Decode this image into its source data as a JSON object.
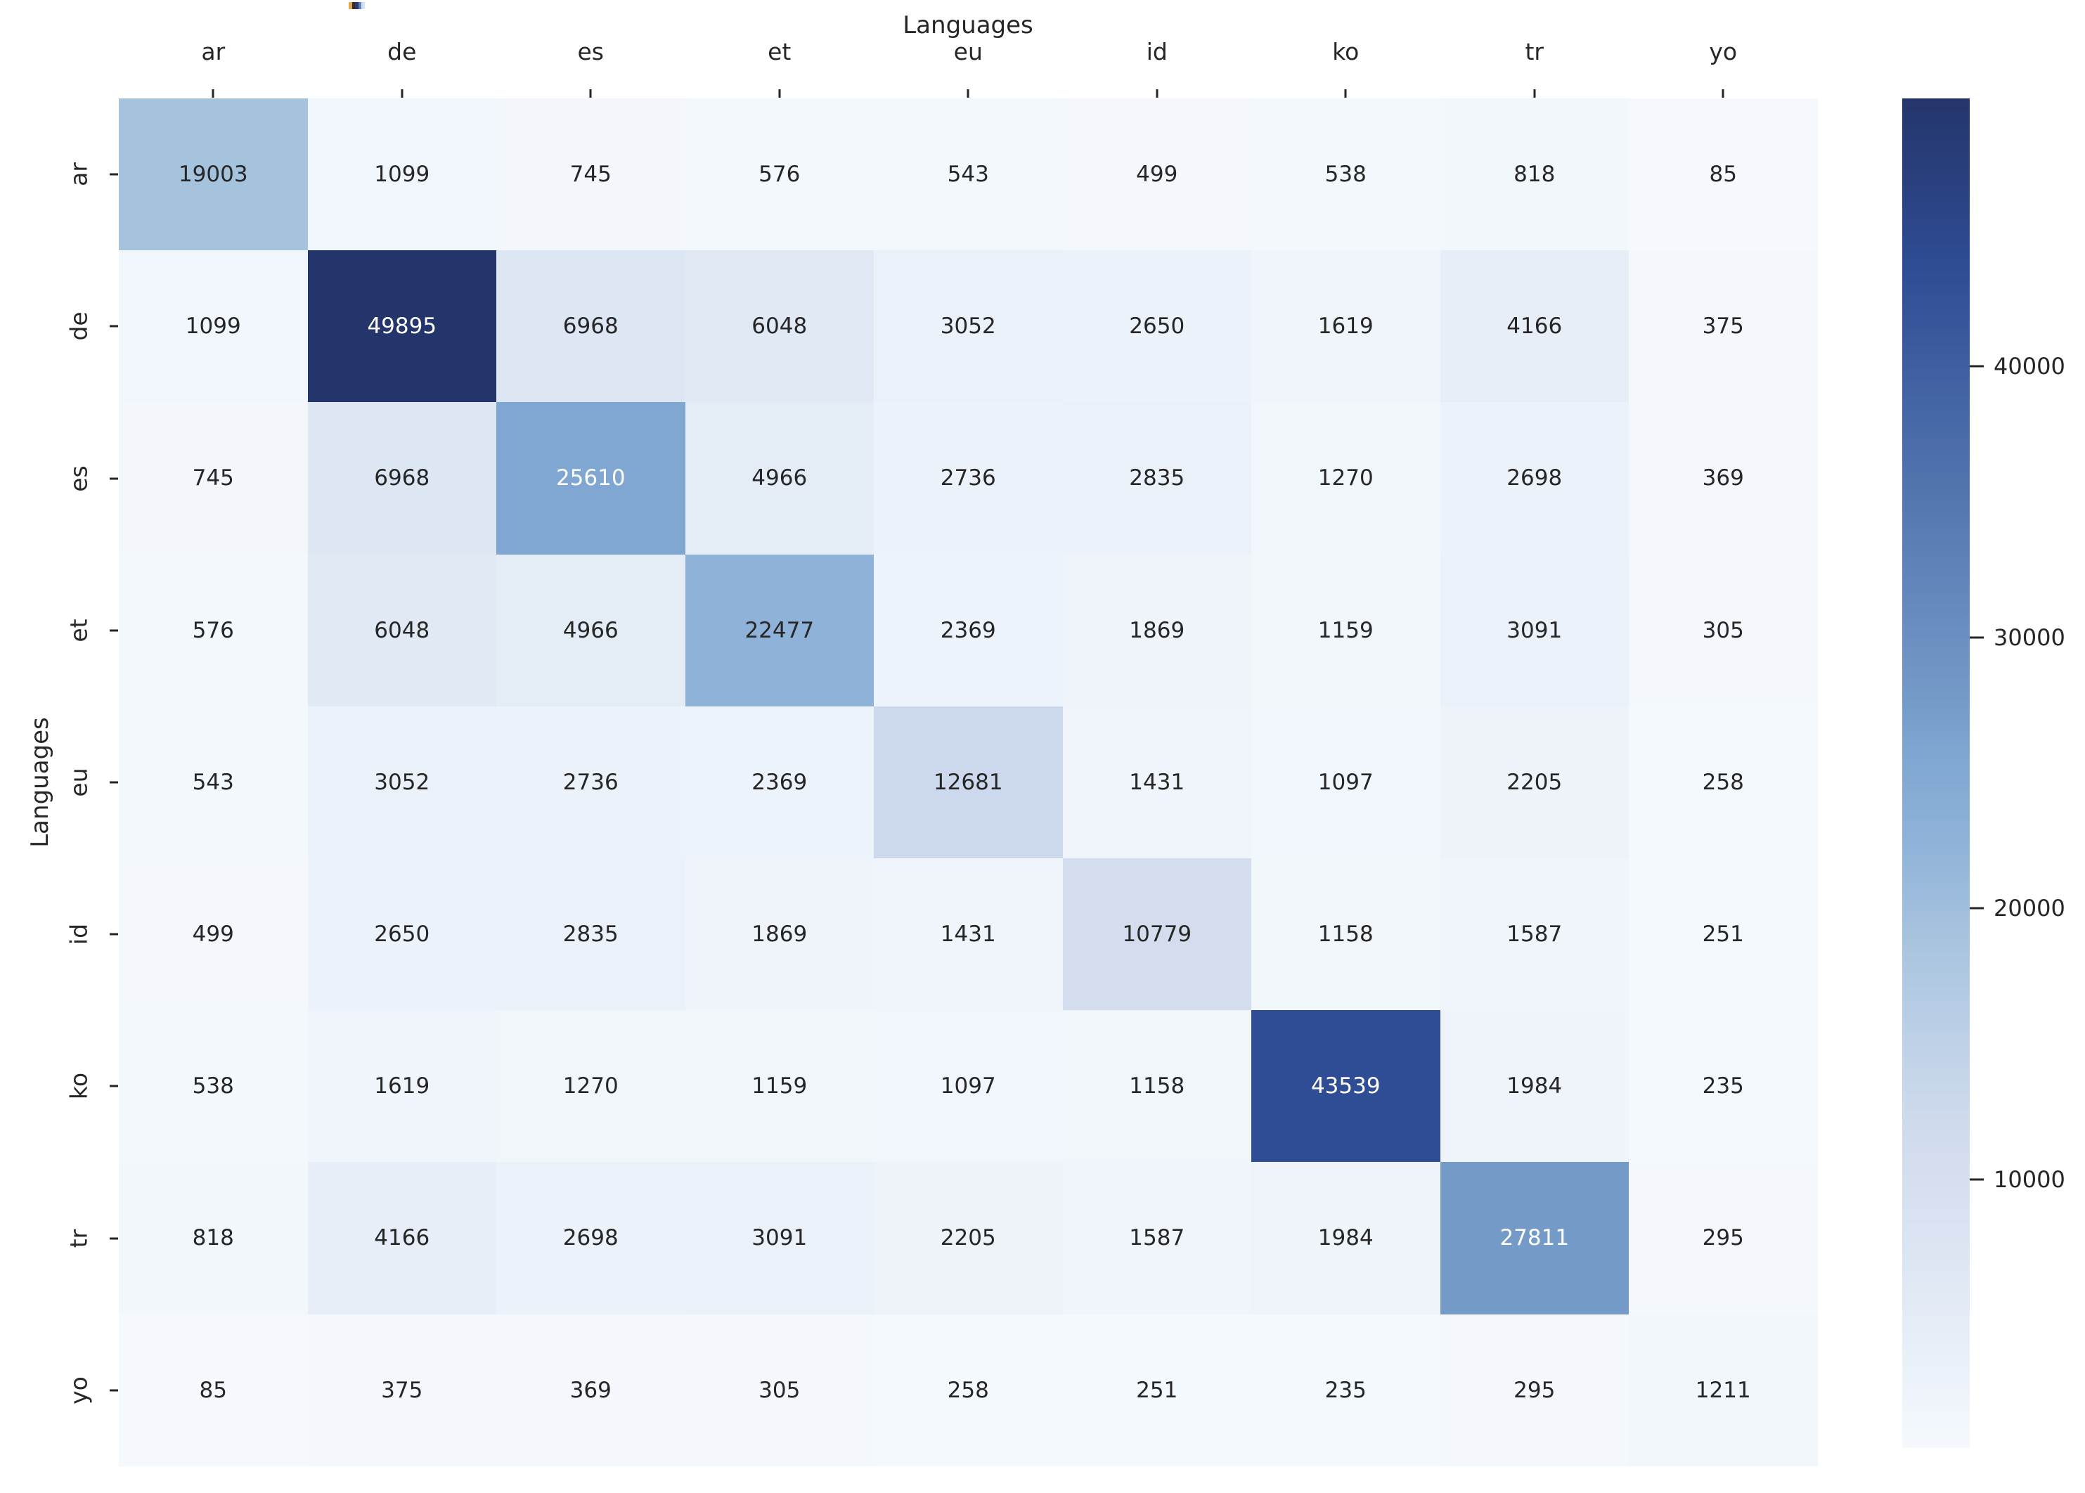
{
  "chart_data": {
    "type": "heatmap",
    "top_axis_label": "Languages",
    "left_axis_label": "Languages",
    "categories": [
      "ar",
      "de",
      "es",
      "et",
      "eu",
      "id",
      "ko",
      "tr",
      "yo"
    ],
    "matrix": [
      [
        19003,
        1099,
        745,
        576,
        543,
        499,
        538,
        818,
        85
      ],
      [
        1099,
        49895,
        6968,
        6048,
        3052,
        2650,
        1619,
        4166,
        375
      ],
      [
        745,
        6968,
        25610,
        4966,
        2736,
        2835,
        1270,
        2698,
        369
      ],
      [
        576,
        6048,
        4966,
        22477,
        2369,
        1869,
        1159,
        3091,
        305
      ],
      [
        543,
        3052,
        2736,
        2369,
        12681,
        1431,
        1097,
        2205,
        258
      ],
      [
        499,
        2650,
        2835,
        1869,
        1431,
        10779,
        1158,
        1587,
        251
      ],
      [
        538,
        1619,
        1270,
        1159,
        1097,
        1158,
        43539,
        1984,
        235
      ],
      [
        818,
        4166,
        2698,
        3091,
        2205,
        1587,
        1984,
        27811,
        295
      ],
      [
        85,
        375,
        369,
        305,
        258,
        251,
        235,
        295,
        1211
      ]
    ],
    "vmin": 85,
    "vmax": 49895,
    "colorbar_ticks": [
      10000,
      20000,
      30000,
      40000
    ],
    "colorbar_tick_labels": [
      "10000",
      "20000",
      "30000",
      "40000"
    ],
    "colormap_name": "Blues",
    "colormap_stops": [
      [
        0.0,
        "#f5f9fd"
      ],
      [
        0.138,
        "#dde6f3"
      ],
      [
        0.215,
        "#d3ddee"
      ],
      [
        0.253,
        "#ccd9ec"
      ],
      [
        0.38,
        "#a6c3de"
      ],
      [
        0.45,
        "#8fb2d9"
      ],
      [
        0.512,
        "#7fa7d1"
      ],
      [
        0.557,
        "#749ac8"
      ],
      [
        0.872,
        "#2f4d94"
      ],
      [
        1.0,
        "#24356b"
      ]
    ],
    "annotation_text_dark": "#262626",
    "annotation_text_light": "#ffffff",
    "legend_position": "right-colorbar",
    "grid": "off"
  },
  "artifact": {
    "colors": [
      "#e2aa4e",
      "#3a2c33",
      "#2c3a6b",
      "#5d82c1",
      "#cfe4f8"
    ]
  }
}
